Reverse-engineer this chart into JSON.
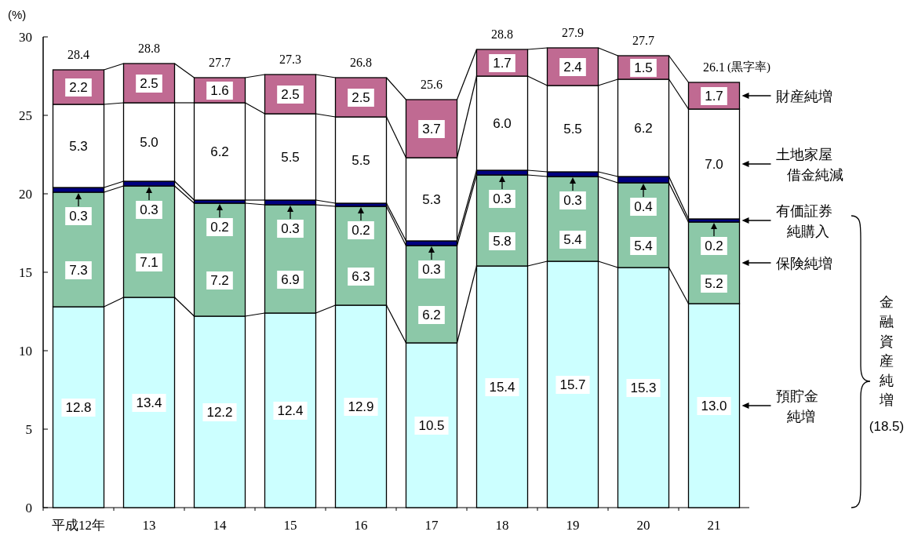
{
  "chart_data": {
    "type": "bar",
    "stacked": true,
    "ylabel": "(%)",
    "ylim": [
      0,
      30
    ],
    "yticks": [
      0,
      5,
      10,
      15,
      20,
      25,
      30
    ],
    "categories": [
      "平成12年",
      "13",
      "14",
      "15",
      "16",
      "17",
      "18",
      "19",
      "20",
      "21"
    ],
    "series": [
      {
        "name": "預貯金純増",
        "color": "#ccffff",
        "values": [
          12.8,
          13.4,
          12.2,
          12.4,
          12.9,
          10.5,
          15.4,
          15.7,
          15.3,
          13.0
        ],
        "value_labels": [
          "12.8",
          "13.4",
          "12.2",
          "12.4",
          "12.9",
          "10.5",
          "15.4",
          "15.7",
          "15.3",
          "13.0"
        ]
      },
      {
        "name": "保険純増",
        "color": "#8cc8a8",
        "values": [
          7.3,
          7.1,
          7.2,
          6.9,
          6.3,
          6.2,
          5.8,
          5.4,
          5.4,
          5.2
        ],
        "value_labels": [
          "7.3",
          "7.1",
          "7.2",
          "6.9",
          "6.3",
          "6.2",
          "5.8",
          "5.4",
          "5.4",
          "5.2"
        ]
      },
      {
        "name": "有価証券純購入",
        "color": "#000080",
        "values": [
          0.3,
          0.3,
          0.2,
          0.3,
          0.2,
          0.3,
          0.3,
          0.3,
          0.4,
          0.2
        ],
        "value_labels": [
          "0.3",
          "0.3",
          "0.2",
          "0.3",
          "0.2",
          "0.3",
          "0.3",
          "0.3",
          "0.4",
          "0.2"
        ]
      },
      {
        "name": "土地家屋借金純減",
        "color": "#ffffff",
        "values": [
          5.3,
          5.0,
          6.2,
          5.5,
          5.5,
          5.3,
          6.0,
          5.5,
          6.2,
          7.0
        ],
        "value_labels": [
          "5.3",
          "5.0",
          "6.2",
          "5.5",
          "5.5",
          "5.3",
          "6.0",
          "5.5",
          "6.2",
          "7.0"
        ]
      },
      {
        "name": "財産純増",
        "color": "#c06a92",
        "values": [
          2.2,
          2.5,
          1.6,
          2.5,
          2.5,
          3.7,
          1.7,
          2.4,
          1.5,
          1.7
        ],
        "value_labels": [
          "2.2",
          "2.5",
          "1.6",
          "2.5",
          "2.5",
          "3.7",
          "1.7",
          "2.4",
          "1.5",
          "1.7"
        ]
      }
    ],
    "legend": "right",
    "grid": false,
    "annotations": [
      "28.4",
      "28.8",
      "27.7",
      "27.3",
      "26.8",
      "25.6",
      "28.8",
      "27.9",
      "27.7",
      "26.1",
      "(黒字率)",
      "金融資産純増",
      "(18.5)"
    ]
  }
}
